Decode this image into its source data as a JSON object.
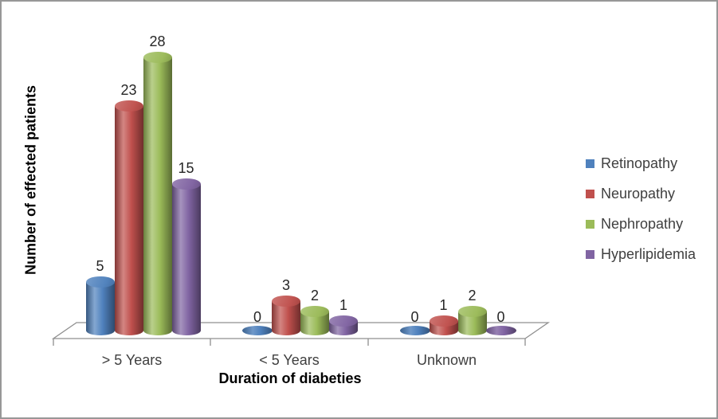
{
  "chart_data": {
    "type": "bar",
    "subtype": "3d-cylinder",
    "title": "",
    "xlabel": "Duration of diabeties",
    "ylabel": "Number of effected patients",
    "categories": [
      "> 5 Years",
      "< 5 Years",
      "Unknown"
    ],
    "series": [
      {
        "name": "Retinopathy",
        "color": "#4F81BD",
        "values": [
          5,
          0,
          0
        ]
      },
      {
        "name": "Neuropathy",
        "color": "#C0504D",
        "values": [
          23,
          3,
          1
        ]
      },
      {
        "name": "Nephropathy",
        "color": "#9BBB59",
        "values": [
          28,
          2,
          2
        ]
      },
      {
        "name": "Hyperlipidemia",
        "color": "#8064A2",
        "values": [
          15,
          1,
          0
        ]
      }
    ],
    "data_labels": true,
    "legend_position": "right",
    "grid": false,
    "ylim": [
      0,
      30
    ]
  }
}
